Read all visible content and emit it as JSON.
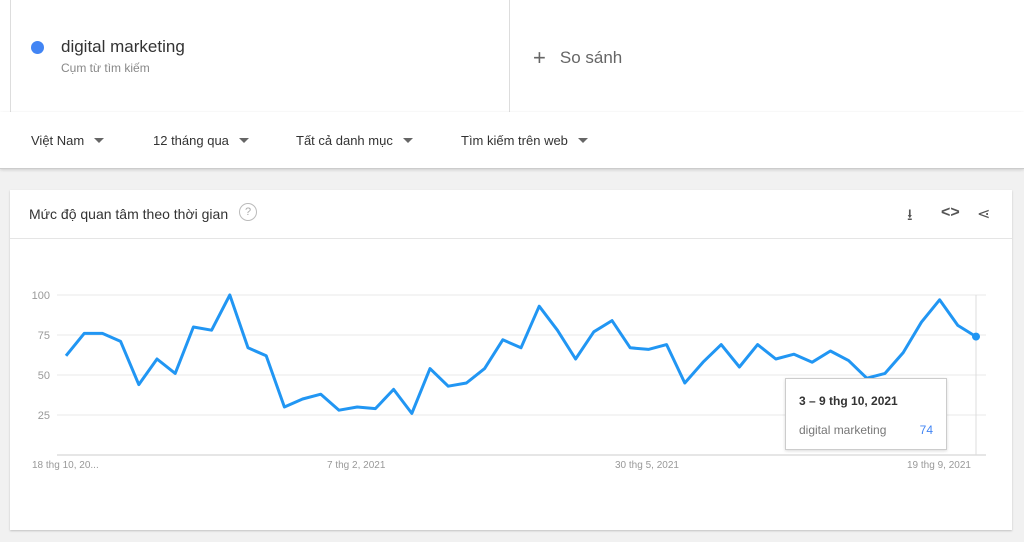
{
  "search_term": {
    "name": "digital marketing",
    "subtitle": "Cụm từ tìm kiếm",
    "color": "#4285f4"
  },
  "compare": {
    "icon": "plus-icon",
    "label": "So sánh"
  },
  "filters": [
    "Việt Nam",
    "12 tháng qua",
    "Tất cả danh mục",
    "Tìm kiếm trên web"
  ],
  "card": {
    "title": "Mức độ quan tâm theo thời gian",
    "help": "?",
    "icons": [
      "download-icon",
      "embed-icon",
      "share-icon"
    ]
  },
  "tooltip": {
    "date": "3 – 9 thg 10, 2021",
    "series": "digital marketing",
    "value": "74"
  },
  "chart_data": {
    "type": "line",
    "yticks": [
      100,
      75,
      50,
      25
    ],
    "ylim": [
      0,
      100
    ],
    "xtick_labels": [
      "18 thg 10, 20...",
      "7 thg 2, 2021",
      "30 thg 5, 2021",
      "19 thg 9, 2021"
    ],
    "grid": true,
    "series": [
      {
        "name": "digital marketing",
        "color": "#2196f3",
        "values": [
          62,
          76,
          76,
          71,
          44,
          60,
          51,
          80,
          78,
          100,
          67,
          62,
          30,
          35,
          38,
          28,
          30,
          29,
          41,
          26,
          54,
          43,
          45,
          54,
          72,
          67,
          93,
          78,
          60,
          77,
          84,
          67,
          66,
          69,
          45,
          58,
          69,
          55,
          69,
          60,
          63,
          58,
          65,
          59,
          48,
          51,
          64,
          83,
          97,
          81,
          74
        ]
      }
    ]
  }
}
